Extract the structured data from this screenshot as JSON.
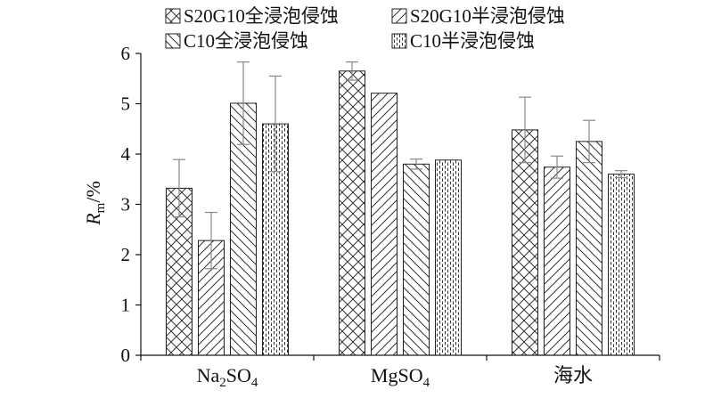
{
  "chart_data": {
    "type": "bar",
    "ylabel_main": "R",
    "ylabel_sub": "m",
    "ylabel_unit": "/%",
    "ylim": [
      0,
      6
    ],
    "yticks": [
      0,
      1,
      2,
      3,
      4,
      5,
      6
    ],
    "grid": false,
    "legend_position": "top",
    "categories": [
      {
        "main": "Na",
        "sub1": "2",
        "mid": "SO",
        "sub2": "4"
      },
      {
        "main": "MgSO",
        "sub1": "4",
        "mid": "",
        "sub2": ""
      },
      {
        "main": "海水",
        "sub1": "",
        "mid": "",
        "sub2": ""
      }
    ],
    "series": [
      {
        "name": "S20G10全浸泡侵蚀",
        "pattern": "crosshatch",
        "values": [
          3.32,
          5.65,
          4.48
        ],
        "errors": [
          0.57,
          0.18,
          0.65
        ]
      },
      {
        "name": "S20G10半浸泡侵蚀",
        "pattern": "diag-up",
        "values": [
          2.28,
          5.21,
          3.74
        ],
        "errors": [
          0.56,
          0.0,
          0.22
        ]
      },
      {
        "name": "C10全浸泡侵蚀",
        "pattern": "diag-down",
        "values": [
          5.01,
          3.8,
          4.25
        ],
        "errors": [
          0.82,
          0.1,
          0.42
        ]
      },
      {
        "name": "C10半浸泡侵蚀",
        "pattern": "vertical-dash",
        "values": [
          4.6,
          3.88,
          3.6
        ],
        "errors": [
          0.95,
          0.0,
          0.07
        ]
      }
    ],
    "colors": {
      "bar_stroke": "#222222",
      "hatch": "#333333",
      "error_bar": "#888888",
      "axis": "#111111"
    }
  }
}
